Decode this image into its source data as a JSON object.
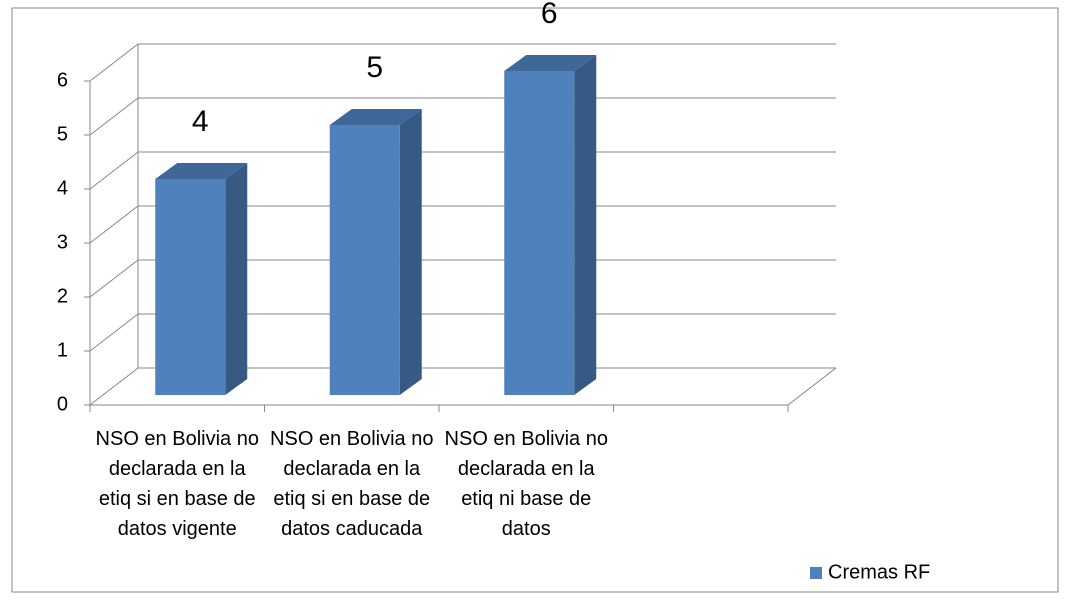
{
  "chart_data": {
    "type": "bar3d",
    "categories": [
      "NSO en Bolivia no declarada en la etiq si en base de datos vigente",
      "NSO en Bolivia no declarada en la etiq si en base de datos caducada",
      "NSO en Bolivia no declarada en la etiq ni base de datos",
      null
    ],
    "series": [
      {
        "name": "Cremas RF",
        "color": "#4f81bd",
        "values": [
          4,
          5,
          6,
          null
        ]
      }
    ],
    "ylim": [
      0,
      6
    ],
    "yticks": [
      0,
      1,
      2,
      3,
      4,
      5,
      6
    ],
    "grid": true,
    "legend": "bottom-right",
    "data_labels": true
  }
}
